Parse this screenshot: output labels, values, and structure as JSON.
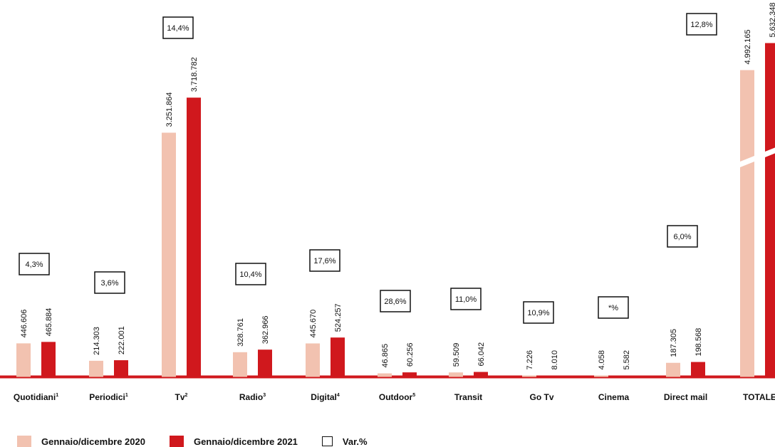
{
  "chart_data": {
    "type": "bar",
    "categories": [
      "Quotidiani",
      "Periodici",
      "Tv",
      "Radio",
      "Digital",
      "Outdoor",
      "Transit",
      "Go Tv",
      "Cinema",
      "Direct mail",
      "TOTALE"
    ],
    "category_superscripts": [
      "1",
      "1",
      "2",
      "3",
      "4",
      "5",
      "",
      "",
      "",
      "",
      ""
    ],
    "series": [
      {
        "name": "Gennaio/dicembre 2020",
        "values": [
          446606,
          214303,
          3251864,
          328761,
          445670,
          46865,
          59509,
          7226,
          4058,
          187305,
          4992165
        ],
        "labels": [
          "446.606",
          "214.303",
          "3.251.864",
          "328.761",
          "445.670",
          "46.865",
          "59.509",
          "7.226",
          "4.058",
          "187.305",
          "4.992.165"
        ]
      },
      {
        "name": "Gennaio/dicembre 2021",
        "values": [
          465884,
          222001,
          3718782,
          362966,
          524257,
          60256,
          66042,
          8010,
          5582,
          198568,
          5632348
        ],
        "labels": [
          "465.884",
          "222.001",
          "3.718.782",
          "362.966",
          "524.257",
          "60.256",
          "66.042",
          "8.010",
          "5.582",
          "198.568",
          "5.632.348"
        ]
      }
    ],
    "variation_labels": [
      "4,3%",
      "3,6%",
      "14,4%",
      "10,4%",
      "17,6%",
      "28,6%",
      "11,0%",
      "10,9%",
      "*%",
      "6,0%",
      "12,8%"
    ],
    "axis_break_category": "TOTALE",
    "legend": {
      "placement": "bottom-left",
      "variation_label": "Var.%"
    },
    "title": "",
    "xlabel": "",
    "ylabel": ""
  },
  "colors": {
    "series_2020": "#f2c2b0",
    "series_2021": "#d0181d",
    "axis": "#d0181d",
    "text": "#111111"
  }
}
